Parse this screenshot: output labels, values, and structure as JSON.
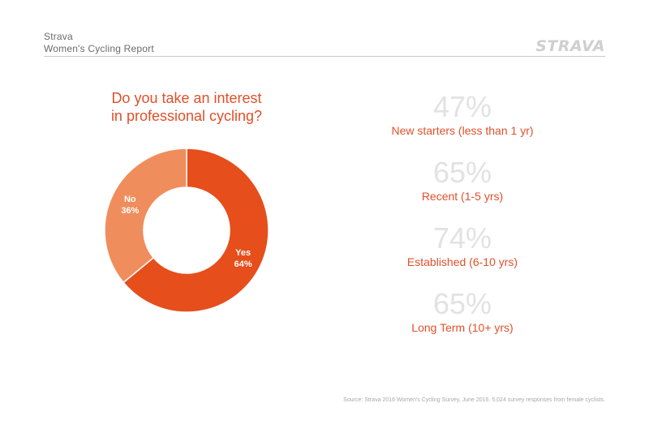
{
  "header": {
    "brand": "Strava",
    "report_title": "Women's Cycling Report",
    "logo_text": "STRAVA"
  },
  "colors": {
    "accent": "#e0502a",
    "yes_slice": "#e64e1c",
    "no_slice": "#f08d5c",
    "stat_value": "#e2e2e2"
  },
  "chart_data": [
    {
      "type": "pie",
      "title": "Do you take an interest in professional cycling?",
      "title_lines": [
        "Do you take an interest",
        "in professional cycling?"
      ],
      "donut": true,
      "slices": [
        {
          "label": "Yes",
          "value": 64,
          "value_label": "64%"
        },
        {
          "label": "No",
          "value": 36,
          "value_label": "36%"
        }
      ]
    },
    {
      "type": "table",
      "rows": [
        {
          "value": 47,
          "value_label": "47%",
          "label": "New starters (less than 1 yr)"
        },
        {
          "value": 65,
          "value_label": "65%",
          "label": "Recent (1-5 yrs)"
        },
        {
          "value": 74,
          "value_label": "74%",
          "label": "Established (6-10 yrs)"
        },
        {
          "value": 65,
          "value_label": "65%",
          "label": "Long Term (10+ yrs)"
        }
      ]
    }
  ],
  "footer": {
    "source": "Source: Strava 2016 Women's Cycling Survey, June 2016. 5,024 survey responses from female cyclists."
  }
}
